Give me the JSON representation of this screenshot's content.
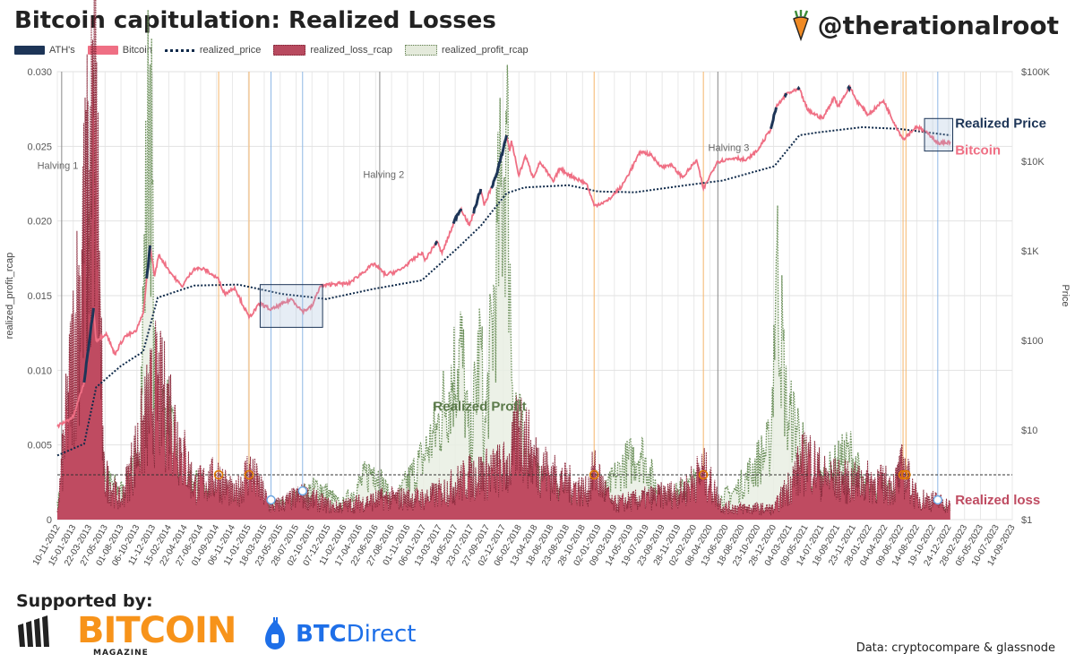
{
  "header": {
    "title": "Bitcoin capitulation: Realized Losses",
    "brand": "@therationalroot"
  },
  "legend": [
    {
      "label": "ATH's",
      "color": "#1d3557"
    },
    {
      "label": "Bitcoin",
      "color": "#ef6f84"
    },
    {
      "label": "realized_price",
      "color": "#0f2a4a"
    },
    {
      "label": "realized_loss_rcap",
      "color": "#b84a5f"
    },
    {
      "label": "realized_profit_rcap",
      "color": "#e4eadb"
    }
  ],
  "footer": {
    "supported_by": "Supported by:",
    "sponsor1": "BITCOIN",
    "sponsor1_sub": "MAGAZINE",
    "sponsor2a": "BTC",
    "sponsor2b": "Direct",
    "source": "Data: cryptocompare & glassnode"
  },
  "chart_data": {
    "type": "line",
    "left_axis": {
      "label": "realized_profit_rcap",
      "range": [
        0,
        0.03
      ],
      "ticks": [
        "0",
        "0.005",
        "0.010",
        "0.015",
        "0.020",
        "0.025",
        "0.030"
      ]
    },
    "right_axis": {
      "label": "Price",
      "scale": "log",
      "range": [
        1,
        100000
      ],
      "ticks": [
        "$1",
        "$10",
        "$100",
        "$1K",
        "$10K",
        "$100K"
      ]
    },
    "x_labels": [
      "10-11-2012",
      "15-01-2013",
      "22-03-2013",
      "27-05-2013",
      "01-08-2013",
      "06-10-2013",
      "11-12-2013",
      "15-02-2014",
      "22-04-2014",
      "27-06-2014",
      "01-09-2014",
      "06-11-2014",
      "11-01-2015",
      "18-03-2015",
      "23-05-2015",
      "28-07-2015",
      "02-10-2015",
      "07-12-2015",
      "11-02-2016",
      "17-04-2016",
      "22-06-2016",
      "27-08-2016",
      "01-11-2016",
      "06-01-2017",
      "13-03-2017",
      "18-05-2017",
      "23-07-2017",
      "27-09-2017",
      "02-12-2017",
      "06-02-2018",
      "13-04-2018",
      "18-06-2018",
      "23-08-2018",
      "28-10-2018",
      "02-01-2019",
      "09-03-2019",
      "14-05-2019",
      "19-07-2019",
      "23-09-2019",
      "28-11-2019",
      "02-02-2020",
      "08-04-2020",
      "13-06-2020",
      "18-08-2020",
      "23-10-2020",
      "28-12-2020",
      "04-03-2021",
      "09-05-2021",
      "14-07-2021",
      "18-09-2021",
      "23-11-2021",
      "28-01-2022",
      "04-04-2022",
      "09-06-2022",
      "14-08-2022",
      "19-10-2022",
      "24-12-2022",
      "28-02-2023",
      "05-05-2023",
      "10-07-2023",
      "14-09-2023"
    ],
    "annotations": [
      "Halving 1",
      "Halving 2",
      "Halving 3",
      "Realized Profit",
      "Realized Price",
      "Bitcoin",
      "Realized loss"
    ],
    "threshold_line": 0.003,
    "halvings": [
      "2012-11-28",
      "2016-07-09",
      "2020-05-11"
    ],
    "orange_markers": [
      "2014-09-10",
      "2015-01-14",
      "2018-12-15",
      "2020-03-12",
      "2022-06-18",
      "2022-06-30"
    ],
    "blue_markers": [
      "2015-04-15",
      "2015-08-24",
      "2022-11-09"
    ],
    "series": [
      {
        "name": "Bitcoin",
        "unit": "USD",
        "points": [
          [
            "2012-11-10",
            11
          ],
          [
            "2013-01-15",
            14
          ],
          [
            "2013-03-01",
            34
          ],
          [
            "2013-04-09",
            230
          ],
          [
            "2013-04-20",
            100
          ],
          [
            "2013-06-01",
            120
          ],
          [
            "2013-07-06",
            70
          ],
          [
            "2013-08-15",
            110
          ],
          [
            "2013-10-01",
            125
          ],
          [
            "2013-11-01",
            200
          ],
          [
            "2013-11-30",
            1150
          ],
          [
            "2013-12-18",
            520
          ],
          [
            "2014-01-05",
            900
          ],
          [
            "2014-02-25",
            560
          ],
          [
            "2014-04-10",
            400
          ],
          [
            "2014-06-01",
            640
          ],
          [
            "2014-07-15",
            620
          ],
          [
            "2014-09-10",
            480
          ],
          [
            "2014-10-05",
            330
          ],
          [
            "2014-11-15",
            390
          ],
          [
            "2015-01-14",
            180
          ],
          [
            "2015-03-01",
            260
          ],
          [
            "2015-04-15",
            220
          ],
          [
            "2015-07-10",
            290
          ],
          [
            "2015-08-24",
            210
          ],
          [
            "2015-10-02",
            240
          ],
          [
            "2015-11-04",
            400
          ],
          [
            "2016-01-01",
            430
          ],
          [
            "2016-03-01",
            430
          ],
          [
            "2016-06-15",
            720
          ],
          [
            "2016-08-02",
            540
          ],
          [
            "2016-10-01",
            610
          ],
          [
            "2016-12-31",
            960
          ],
          [
            "2017-01-12",
            780
          ],
          [
            "2017-03-03",
            1280
          ],
          [
            "2017-03-24",
            940
          ],
          [
            "2017-05-25",
            2500
          ],
          [
            "2017-06-12",
            2950
          ],
          [
            "2017-07-16",
            1900
          ],
          [
            "2017-09-01",
            4900
          ],
          [
            "2017-09-15",
            3200
          ],
          [
            "2017-11-08",
            7400
          ],
          [
            "2017-12-17",
            19500
          ],
          [
            "2017-12-30",
            13000
          ],
          [
            "2018-01-06",
            17000
          ],
          [
            "2018-02-06",
            6900
          ],
          [
            "2018-03-05",
            11500
          ],
          [
            "2018-04-06",
            6600
          ],
          [
            "2018-05-05",
            9800
          ],
          [
            "2018-06-29",
            5900
          ],
          [
            "2018-07-25",
            8300
          ],
          [
            "2018-09-01",
            7100
          ],
          [
            "2018-11-14",
            5600
          ],
          [
            "2018-12-15",
            3200
          ],
          [
            "2019-02-08",
            3600
          ],
          [
            "2019-04-10",
            5300
          ],
          [
            "2019-06-26",
            12900
          ],
          [
            "2019-08-06",
            11800
          ],
          [
            "2019-09-25",
            8500
          ],
          [
            "2019-10-26",
            9300
          ],
          [
            "2019-12-17",
            6600
          ],
          [
            "2020-02-13",
            10300
          ],
          [
            "2020-03-12",
            4900
          ],
          [
            "2020-05-08",
            9900
          ],
          [
            "2020-07-26",
            11000
          ],
          [
            "2020-09-05",
            10200
          ],
          [
            "2020-10-21",
            13000
          ],
          [
            "2020-12-17",
            23000
          ],
          [
            "2021-01-08",
            40000
          ],
          [
            "2021-02-21",
            57000
          ],
          [
            "2021-04-14",
            63500
          ],
          [
            "2021-05-19",
            37000
          ],
          [
            "2021-07-20",
            30000
          ],
          [
            "2021-09-06",
            52000
          ],
          [
            "2021-09-21",
            41000
          ],
          [
            "2021-11-10",
            68000
          ],
          [
            "2021-12-04",
            49000
          ],
          [
            "2022-01-24",
            33000
          ],
          [
            "2022-03-29",
            47500
          ],
          [
            "2022-05-12",
            27000
          ],
          [
            "2022-06-18",
            17600
          ],
          [
            "2022-08-14",
            24500
          ],
          [
            "2022-10-15",
            19000
          ],
          [
            "2022-11-09",
            15800
          ],
          [
            "2022-12-31",
            16500
          ]
        ]
      },
      {
        "name": "realized_price",
        "unit": "USD",
        "points": [
          [
            "2012-11-10",
            5.2
          ],
          [
            "2013-03-01",
            7
          ],
          [
            "2013-04-20",
            30
          ],
          [
            "2013-08-01",
            52
          ],
          [
            "2013-11-01",
            75
          ],
          [
            "2013-12-31",
            300
          ],
          [
            "2014-06-01",
            410
          ],
          [
            "2014-12-01",
            420
          ],
          [
            "2015-06-01",
            330
          ],
          [
            "2015-12-01",
            290
          ],
          [
            "2016-06-01",
            370
          ],
          [
            "2016-12-31",
            470
          ],
          [
            "2017-06-01",
            1100
          ],
          [
            "2017-09-01",
            1900
          ],
          [
            "2017-12-17",
            4400
          ],
          [
            "2018-03-01",
            5100
          ],
          [
            "2018-09-01",
            5400
          ],
          [
            "2018-12-31",
            4600
          ],
          [
            "2019-06-01",
            4500
          ],
          [
            "2019-12-31",
            5400
          ],
          [
            "2020-06-01",
            6100
          ],
          [
            "2020-12-31",
            8800
          ],
          [
            "2021-04-14",
            19500
          ],
          [
            "2021-07-01",
            21000
          ],
          [
            "2021-12-31",
            24000
          ],
          [
            "2022-06-01",
            23000
          ],
          [
            "2022-12-31",
            19500
          ]
        ]
      },
      {
        "name": "realized_profit_rcap",
        "unit": "fraction of realized cap",
        "points": [
          [
            "2012-11-10",
            0.0012
          ],
          [
            "2013-01-15",
            0.0025
          ],
          [
            "2013-03-01",
            0.006
          ],
          [
            "2013-03-30",
            0.02
          ],
          [
            "2013-04-09",
            0.0305
          ],
          [
            "2013-04-25",
            0.009
          ],
          [
            "2013-06-01",
            0.0025
          ],
          [
            "2013-08-15",
            0.0018
          ],
          [
            "2013-10-15",
            0.004
          ],
          [
            "2013-11-30",
            0.0305
          ],
          [
            "2013-12-20",
            0.006
          ],
          [
            "2014-02-01",
            0.0075
          ],
          [
            "2014-04-15",
            0.002
          ],
          [
            "2014-06-01",
            0.0025
          ],
          [
            "2014-09-01",
            0.0012
          ],
          [
            "2015-02-01",
            0.0008
          ],
          [
            "2015-06-01",
            0.001
          ],
          [
            "2015-11-04",
            0.0022
          ],
          [
            "2016-02-01",
            0.0009
          ],
          [
            "2016-06-15",
            0.0035
          ],
          [
            "2016-09-01",
            0.001
          ],
          [
            "2016-12-31",
            0.004
          ],
          [
            "2017-03-03",
            0.006
          ],
          [
            "2017-06-12",
            0.0115
          ],
          [
            "2017-07-16",
            0.0045
          ],
          [
            "2017-09-01",
            0.012
          ],
          [
            "2017-09-15",
            0.005
          ],
          [
            "2017-12-17",
            0.0265
          ],
          [
            "2018-01-10",
            0.009
          ],
          [
            "2018-03-05",
            0.004
          ],
          [
            "2018-05-05",
            0.0025
          ],
          [
            "2018-09-01",
            0.0012
          ],
          [
            "2018-12-15",
            0.0008
          ],
          [
            "2019-04-10",
            0.0035
          ],
          [
            "2019-06-26",
            0.0045
          ],
          [
            "2019-09-25",
            0.0012
          ],
          [
            "2020-02-13",
            0.0025
          ],
          [
            "2020-03-12",
            0.0007
          ],
          [
            "2020-08-01",
            0.002
          ],
          [
            "2020-12-17",
            0.005
          ],
          [
            "2021-01-08",
            0.0175
          ],
          [
            "2021-02-21",
            0.007
          ],
          [
            "2021-04-14",
            0.006
          ],
          [
            "2021-06-01",
            0.0018
          ],
          [
            "2021-09-06",
            0.0035
          ],
          [
            "2021-11-10",
            0.0045
          ],
          [
            "2022-01-24",
            0.0015
          ],
          [
            "2022-03-29",
            0.0022
          ],
          [
            "2022-06-18",
            0.0008
          ],
          [
            "2022-12-31",
            0.0006
          ]
        ]
      },
      {
        "name": "realized_loss_rcap",
        "unit": "fraction of realized cap",
        "points": [
          [
            "2012-11-10",
            0.0005
          ],
          [
            "2013-04-20",
            0.026
          ],
          [
            "2013-05-20",
            0.003
          ],
          [
            "2013-08-01",
            0.0012
          ],
          [
            "2013-12-20",
            0.0085
          ],
          [
            "2014-02-25",
            0.007
          ],
          [
            "2014-04-10",
            0.0045
          ],
          [
            "2014-06-01",
            0.0022
          ],
          [
            "2014-09-10",
            0.0028
          ],
          [
            "2014-11-15",
            0.0015
          ],
          [
            "2015-01-14",
            0.0033
          ],
          [
            "2015-04-15",
            0.0008
          ],
          [
            "2015-08-24",
            0.0016
          ],
          [
            "2016-01-01",
            0.0008
          ],
          [
            "2016-08-02",
            0.0014
          ],
          [
            "2017-01-12",
            0.0014
          ],
          [
            "2017-03-24",
            0.0018
          ],
          [
            "2017-07-16",
            0.0028
          ],
          [
            "2017-09-15",
            0.003
          ],
          [
            "2017-12-30",
            0.0035
          ],
          [
            "2018-02-06",
            0.0062
          ],
          [
            "2018-04-06",
            0.004
          ],
          [
            "2018-06-29",
            0.0028
          ],
          [
            "2018-11-14",
            0.0018
          ],
          [
            "2018-12-15",
            0.0032
          ],
          [
            "2019-03-01",
            0.001
          ],
          [
            "2019-09-25",
            0.0016
          ],
          [
            "2019-12-17",
            0.0018
          ],
          [
            "2020-03-12",
            0.0032
          ],
          [
            "2020-06-01",
            0.0008
          ],
          [
            "2020-12-31",
            0.0007
          ],
          [
            "2021-05-19",
            0.0042
          ],
          [
            "2021-07-20",
            0.0028
          ],
          [
            "2021-12-04",
            0.0024
          ],
          [
            "2022-01-24",
            0.0025
          ],
          [
            "2022-05-12",
            0.0022
          ],
          [
            "2022-06-18",
            0.0034
          ],
          [
            "2022-08-14",
            0.0014
          ],
          [
            "2022-11-09",
            0.0012
          ],
          [
            "2022-12-31",
            0.0009
          ]
        ]
      }
    ],
    "ath_segments": [
      [
        "2013-03-01",
        "2013-04-09"
      ],
      [
        "2013-11-15",
        "2013-11-30"
      ],
      [
        "2017-02-20",
        "2017-03-03"
      ],
      [
        "2017-05-10",
        "2017-06-12"
      ],
      [
        "2017-08-01",
        "2017-09-01"
      ],
      [
        "2017-10-15",
        "2017-12-17"
      ],
      [
        "2020-12-17",
        "2021-01-08"
      ],
      [
        "2021-02-10",
        "2021-02-21"
      ],
      [
        "2021-04-05",
        "2021-04-14"
      ],
      [
        "2021-11-01",
        "2021-11-10"
      ]
    ],
    "grid": true
  }
}
